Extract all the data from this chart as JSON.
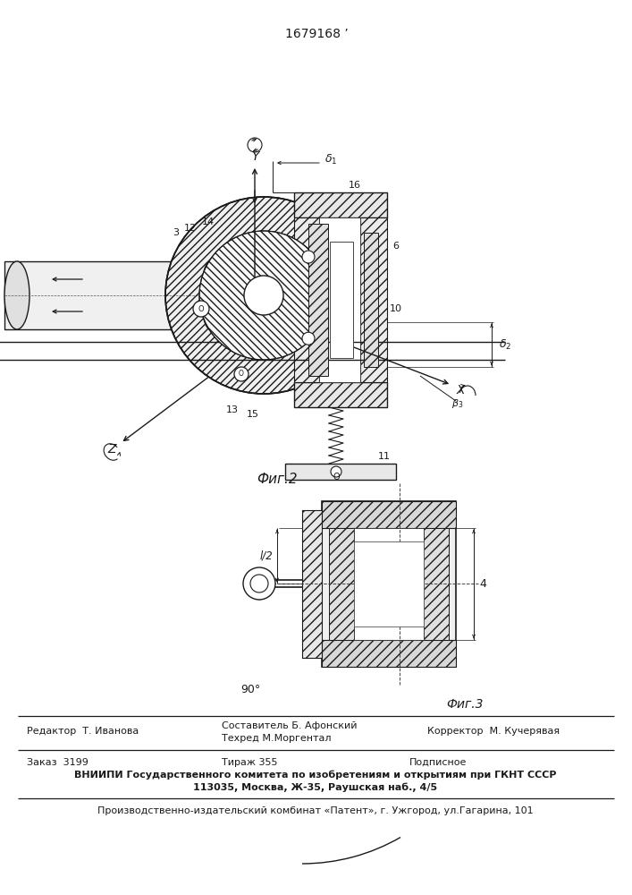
{
  "patent_number": "1679168 ʼ",
  "fig2_label": "Фиг.2",
  "fig3_label": "Фиг.3",
  "footer_line1_left": "Редактор  Т. Иванова",
  "footer_line1_mid1": "Составитель Б. Афонский",
  "footer_line1_mid2": "Техред М.Моргентал",
  "footer_line1_right": "Корректор  М. Кучерявая",
  "footer_line2a": "Заказ  3199",
  "footer_line2b": "Тираж 355",
  "footer_line2c": "Подписное",
  "footer_line3": "ВНИИПИ Государственного комитета по изобретениям и открытиям при ГКНТ СССР",
  "footer_line4": "113035, Москва, Ж-35, Раушская наб., 4/5",
  "footer_line5": "Производственно-издательский комбинат «Патент», г. Ужгород, ул.Гагарина, 101"
}
